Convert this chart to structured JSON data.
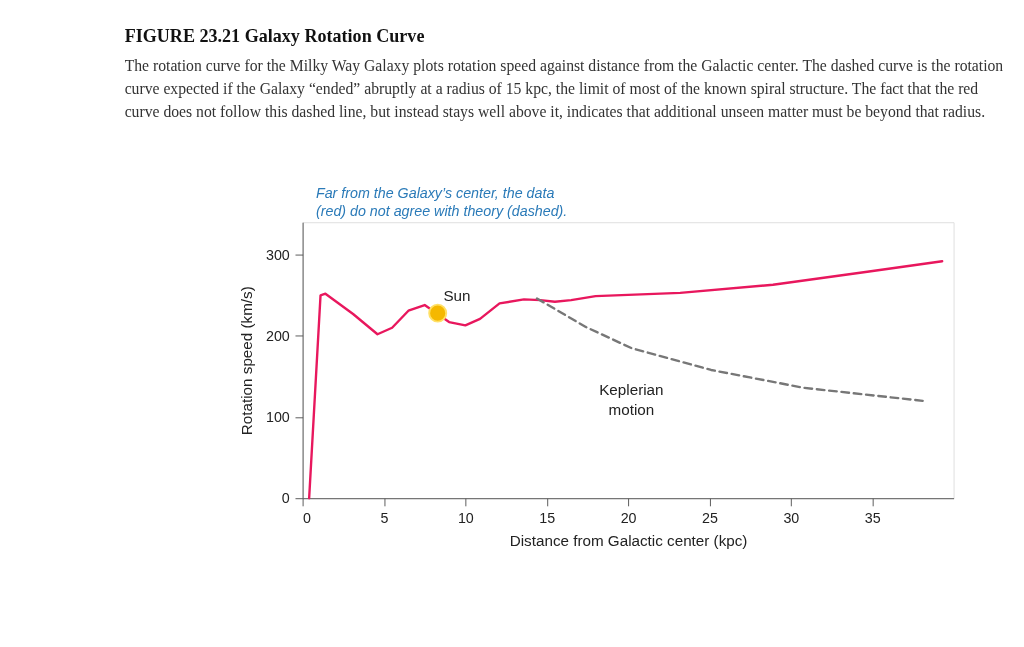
{
  "chart_data": {
    "type": "line",
    "title": "FIGURE 23.21  Galaxy Rotation Curve",
    "subtitle": "The rotation curve for the Milky Way Galaxy plots rotation speed against distance from the Galactic center. The dashed curve is the rotation curve expected if the Galaxy “ended” abruptly at a radius of 15 kpc, the limit of most of the known spiral structure. The fact that the red curve does not follow this dashed line, but instead stays well above it, indicates that additional unseen matter must be beyond that radius.",
    "xlabel": "Distance from Galactic center (kpc)",
    "ylabel": "Rotation speed (km/s)",
    "xlim": [
      0,
      40
    ],
    "ylim": [
      0,
      340
    ],
    "xticks": [
      0,
      5,
      10,
      15,
      20,
      25,
      30,
      35
    ],
    "yticks": [
      0,
      100,
      200,
      300
    ],
    "grid": false,
    "series": [
      {
        "color": "#e8175d",
        "line_style": "solid",
        "x": [
          0.4,
          1.1,
          1.4,
          3.1,
          4.6,
          5.5,
          6.5,
          7.5,
          9.0,
          10.0,
          10.9,
          12.1,
          13.6,
          14.6,
          15.5,
          16.5,
          18.0,
          23.2,
          28.9,
          34.7,
          39.3
        ],
        "values": [
          0,
          250,
          252,
          227,
          202,
          210,
          231,
          238,
          217,
          213,
          221,
          240,
          245,
          244,
          242,
          244,
          249,
          253,
          263,
          279,
          292
        ]
      },
      {
        "color": "#777777",
        "line_style": "dashed",
        "x": [
          14.4,
          17.4,
          20.2,
          25.1,
          30.8,
          38.1
        ],
        "values": [
          246,
          211,
          185,
          158,
          136,
          120
        ]
      },
      {
        "type": "scatter",
        "name": "Sun",
        "color": "#f5b800",
        "x": [
          8.3
        ],
        "values": [
          228
        ]
      }
    ],
    "annotations": [
      "Far from the Galaxy’s center, the data (red) do not agree with theory (dashed).",
      {
        "text": "Keplerian motion",
        "x": 20.2,
        "y": 185
      }
    ]
  }
}
